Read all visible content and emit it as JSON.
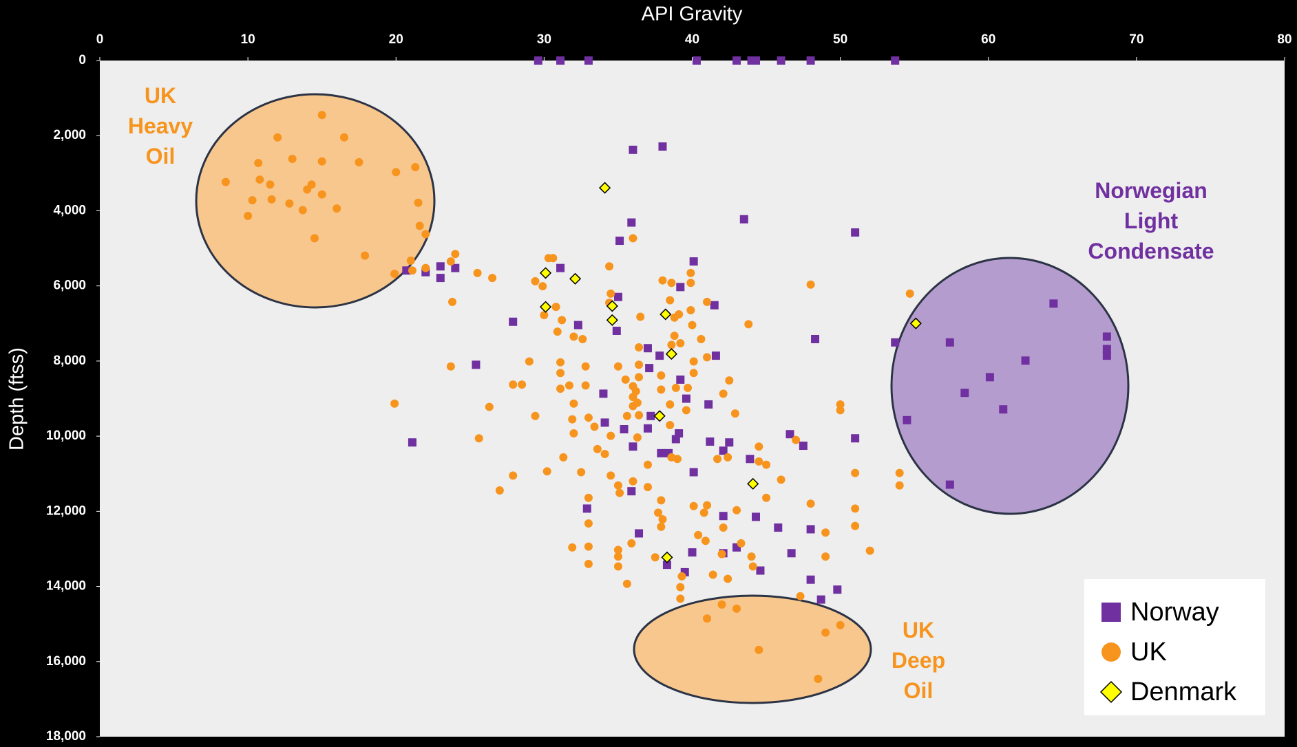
{
  "chart_data": {
    "type": "scatter",
    "x_label": "API Gravity",
    "y_label": "Depth (ftss)",
    "xlim": [
      0,
      80
    ],
    "xticks": [
      0,
      10,
      20,
      30,
      40,
      50,
      60,
      70,
      80
    ],
    "ylim": [
      0,
      18000
    ],
    "y_inverted": true,
    "yticks": [
      0,
      {
        "value": 2000,
        "label": "2,000"
      },
      {
        "value": 4000,
        "label": "4,000"
      },
      {
        "value": 6000,
        "label": "6,000"
      },
      {
        "value": 8000,
        "label": "8,000"
      },
      {
        "value": 10000,
        "label": "10,000"
      },
      {
        "value": 12000,
        "label": "12,000"
      },
      {
        "value": 14000,
        "label": "14,000"
      },
      {
        "value": 16000,
        "label": "16,000"
      },
      {
        "value": 18000,
        "label": "18,000"
      }
    ],
    "grid": false,
    "legend": "lower right",
    "annotations": [
      {
        "lines": [
          "UK",
          "Heavy",
          "Oil"
        ],
        "color": "#f7941d"
      },
      {
        "lines": [
          "Norwegian",
          "Light",
          "Condensate"
        ],
        "color": "#7030a0"
      },
      {
        "lines": [
          "UK",
          "Deep",
          "Oil"
        ],
        "color": "#f7941d"
      }
    ],
    "series": [
      {
        "name": "Norway",
        "color": "#7030a0",
        "marker": "square",
        "x": [
          29.6,
          31.1,
          33.0,
          40.3,
          43.0,
          44.0,
          44.3,
          46.0,
          48.0,
          53.7,
          36.0,
          38.0,
          43.5,
          51.0,
          40.1,
          35.1,
          35.9,
          31.1,
          23.0,
          24.0,
          23.0,
          20.7,
          22.0,
          35.0,
          39.2,
          41.5,
          27.9,
          32.3,
          34.9,
          37.0,
          41.6,
          48.3,
          25.4,
          37.1,
          37.8,
          39.2,
          34.0,
          39.6,
          41.1,
          37.2,
          34.1,
          35.4,
          37.0,
          39.1,
          38.9,
          41.2,
          42.5,
          42.1,
          36.0,
          37.9,
          38.4,
          46.6,
          47.5,
          51.0,
          43.9,
          40.1,
          21.1,
          35.9,
          32.9,
          42.1,
          44.3,
          45.8,
          48.0,
          36.4,
          40.0,
          42.1,
          43.0,
          46.7,
          38.3,
          39.5,
          44.6,
          48.0,
          49.8,
          48.7,
          53.7,
          57.4,
          64.4,
          68.0,
          68.0,
          68.0,
          62.5,
          60.1,
          58.4,
          61.0,
          54.5,
          57.4
        ],
        "y": [
          0,
          0,
          0,
          0,
          0,
          0,
          0,
          0,
          0,
          0,
          2377,
          2289,
          4225,
          4577,
          5348,
          4798,
          4313,
          5524,
          5480,
          5524,
          5788,
          5590,
          5634,
          6294,
          6030,
          6514,
          6954,
          7042,
          7196,
          7658,
          7857,
          7416,
          8099,
          8187,
          7857,
          8495,
          8869,
          9001,
          9155,
          9463,
          9639,
          9815,
          9793,
          9925,
          10079,
          10145,
          10167,
          10387,
          10277,
          10453,
          10453,
          9947,
          10255,
          10057,
          10607,
          10959,
          10167,
          11466,
          11928,
          12126,
          12148,
          12434,
          12478,
          12588,
          13094,
          13116,
          12962,
          13116,
          13424,
          13622,
          13578,
          13820,
          14085,
          14349,
          7504,
          7504,
          6470,
          7350,
          7680,
          7857,
          7988,
          8429,
          8847,
          9287,
          9573,
          11290
        ]
      },
      {
        "name": "UK",
        "color": "#f7941d",
        "marker": "circle",
        "x": [
          15.0,
          12.0,
          16.5,
          10.7,
          13.0,
          15.0,
          17.5,
          20.0,
          21.3,
          8.5,
          10.8,
          11.5,
          14.0,
          14.3,
          15.0,
          10.3,
          11.6,
          12.8,
          13.7,
          16.0,
          21.5,
          10.0,
          21.6,
          22.0,
          14.5,
          17.9,
          21.0,
          19.9,
          21.1,
          22.0,
          24.0,
          23.7,
          23.8,
          25.5,
          26.5,
          23.7,
          26.3,
          25.6,
          19.9,
          27.0,
          27.9,
          29.0,
          27.9,
          28.5,
          29.4,
          29.9,
          30.0,
          30.3,
          30.6,
          30.8,
          31.2,
          30.9,
          32.0,
          32.6,
          31.1,
          32.8,
          31.1,
          31.1,
          31.7,
          32.0,
          32.8,
          29.4,
          31.9,
          33.0,
          32.0,
          33.4,
          31.3,
          32.5,
          30.2,
          33.6,
          34.1,
          34.5,
          33.0,
          33.0,
          31.9,
          33.0,
          33.0,
          34.5,
          35.0,
          35.1,
          34.4,
          34.5,
          34.4,
          36.0,
          35.0,
          35.5,
          36.0,
          36.2,
          36.3,
          36.0,
          36.0,
          36.4,
          35.6,
          36.3,
          36.5,
          36.4,
          36.4,
          36.4,
          37.9,
          38.0,
          38.6,
          38.5,
          38.8,
          39.1,
          38.8,
          38.6,
          39.2,
          39.9,
          39.9,
          39.9,
          40.0,
          40.6,
          41.0,
          40.1,
          40.1,
          41.0,
          38.9,
          39.7,
          37.9,
          38.5,
          38.5,
          39.6,
          38.6,
          39.0,
          37.0,
          36.0,
          37.0,
          37.9,
          37.7,
          38.0,
          37.9,
          40.1,
          41.0,
          40.8,
          40.4,
          40.9,
          42.1,
          43.0,
          42.0,
          42.4,
          41.7,
          42.9,
          42.1,
          42.5,
          43.8,
          44.5,
          44.5,
          45.0,
          45.0,
          44.0,
          44.1,
          43.3,
          35.9,
          35.0,
          35.0,
          35.0,
          35.6,
          37.5,
          39.3,
          39.2,
          39.2,
          41.4,
          42.4,
          48.0,
          49.0,
          49.0,
          47.3,
          48.0,
          50.0,
          50.0,
          47.0,
          51.0,
          51.0,
          51.0,
          52.0,
          54.0,
          54.0,
          54.7,
          46.0,
          42.0,
          43.0,
          41.0,
          44.5,
          50.0,
          49.0,
          48.5
        ],
        "y": [
          1452,
          2047,
          2047,
          2729,
          2619,
          2685,
          2707,
          2971,
          2839,
          3235,
          3169,
          3301,
          3433,
          3301,
          3565,
          3719,
          3697,
          3807,
          3983,
          3939,
          3785,
          4137,
          4401,
          4621,
          4731,
          5194,
          5326,
          5678,
          5590,
          5524,
          5150,
          5348,
          6426,
          5656,
          5788,
          8143,
          9221,
          10057,
          9133,
          11444,
          11048,
          8011,
          8627,
          8627,
          5876,
          6008,
          6778,
          5260,
          5260,
          6558,
          6910,
          7218,
          7350,
          7416,
          8033,
          8143,
          8319,
          8737,
          8649,
          9133,
          8649,
          9463,
          9551,
          9507,
          9925,
          9749,
          10563,
          10959,
          10937,
          10343,
          10475,
          9991,
          11642,
          12324,
          12962,
          12940,
          13402,
          11048,
          11312,
          11510,
          6448,
          6206,
          5480,
          4731,
          8143,
          8495,
          8671,
          8803,
          9111,
          8957,
          9199,
          9441,
          9463,
          10035,
          6822,
          7636,
          8099,
          8429,
          8385,
          5854,
          5920,
          6382,
          6844,
          6756,
          7328,
          7570,
          7526,
          5656,
          5920,
          6646,
          7042,
          7416,
          6426,
          8011,
          8319,
          7900,
          8715,
          8715,
          8759,
          9155,
          9705,
          9309,
          10563,
          10607,
          10761,
          11202,
          11356,
          11708,
          12038,
          12214,
          12412,
          11862,
          11840,
          12038,
          12632,
          12786,
          12434,
          11972,
          13138,
          10563,
          10607,
          9397,
          8869,
          8517,
          7020,
          10277,
          10673,
          10761,
          11642,
          13204,
          13468,
          12852,
          12852,
          13028,
          13204,
          13468,
          13930,
          13226,
          13732,
          14019,
          14327,
          13688,
          13798,
          11796,
          12566,
          13204,
          14261,
          5964,
          9155,
          9309,
          10101,
          10981,
          11928,
          12390,
          13050,
          10981,
          11312,
          6206,
          11158,
          14481,
          14591,
          14855,
          15691,
          15031,
          15229,
          16461
        ]
      },
      {
        "name": "Denmark",
        "color": "#ffff00",
        "marker": "diamond",
        "x": [
          34.1,
          30.1,
          32.1,
          30.1,
          34.6,
          38.2,
          34.6,
          55.1,
          38.6,
          37.8,
          44.1,
          38.3
        ],
        "y": [
          3389,
          5656,
          5810,
          6558,
          6536,
          6756,
          6910,
          6998,
          7812,
          9463,
          11268,
          13226
        ]
      }
    ]
  }
}
